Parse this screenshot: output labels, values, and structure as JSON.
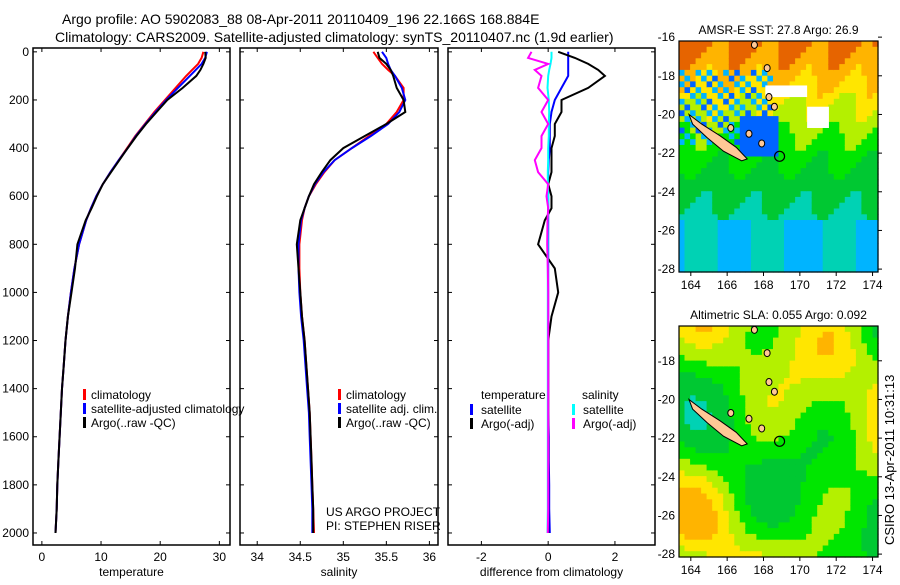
{
  "title": {
    "line1": "Argo profile: AO 5902083_88 08-Apr-2011 20110409_196 22.166S 168.884E",
    "line2": "Climatology: CARS2009. Satellite-adjusted climatology: synTS_20110407.nc (1.9d earlier)"
  },
  "credits": {
    "project": "US ARGO PROJECT",
    "pi": "PI: STEPHEN RISER",
    "stamp": "CSIRO 13-Apr-2011 10:31:13"
  },
  "colors": {
    "climatology": "#ff0000",
    "satellite": "#0000ff",
    "argo": "#000000",
    "sal_satellite": "#00ffff",
    "sal_argo": "#ff00ff"
  },
  "chart_data": [
    {
      "type": "line",
      "xlabel": "temperature",
      "ylabel": "",
      "xlim": [
        -1.5,
        31.8
      ],
      "ylim": [
        2050,
        -16
      ],
      "xticks": [
        "0",
        "10",
        "20",
        "30"
      ],
      "xtick_values": [
        0,
        10,
        20,
        30
      ],
      "yticks": [
        "0",
        "200",
        "400",
        "600",
        "800",
        "1000",
        "1200",
        "1400",
        "1600",
        "1800",
        "2000"
      ],
      "ytick_values": [
        0,
        200,
        400,
        600,
        800,
        1000,
        1200,
        1400,
        1600,
        1800,
        2000
      ],
      "legend": [
        "climatology",
        "satellite-adjusted climatology",
        "Argo(..raw -QC)"
      ],
      "depth": [
        0,
        25,
        50,
        75,
        100,
        150,
        200,
        250,
        300,
        350,
        400,
        450,
        500,
        550,
        600,
        650,
        700,
        800,
        900,
        1000,
        1100,
        1200,
        1300,
        1400,
        1500,
        1600,
        1700,
        1800,
        1900,
        2000
      ],
      "series": [
        {
          "name": "climatology",
          "values": [
            27.3,
            27.0,
            26.4,
            25.4,
            24.4,
            22.6,
            20.8,
            19.0,
            17.4,
            15.8,
            14.4,
            13.0,
            11.6,
            10.3,
            9.2,
            8.3,
            7.5,
            6.3,
            5.5,
            4.9,
            4.4,
            4.0,
            3.7,
            3.4,
            3.2,
            3.0,
            2.8,
            2.6,
            2.5,
            2.3
          ]
        },
        {
          "name": "satellite-adjusted climatology",
          "values": [
            27.9,
            27.6,
            27.0,
            26.0,
            25.0,
            23.0,
            21.0,
            19.2,
            17.5,
            15.9,
            14.5,
            13.0,
            11.6,
            10.3,
            9.2,
            8.3,
            7.5,
            6.3,
            5.5,
            4.9,
            4.4,
            4.0,
            3.7,
            3.4,
            3.2,
            3.0,
            2.8,
            2.6,
            2.5,
            2.3
          ]
        },
        {
          "name": "Argo(..raw -QC)",
          "values": [
            27.6,
            27.7,
            27.3,
            26.8,
            26.1,
            23.8,
            21.2,
            19.4,
            17.6,
            16.0,
            14.5,
            13.1,
            11.7,
            10.3,
            9.3,
            8.4,
            7.4,
            6.0,
            5.6,
            5.0,
            4.4,
            4.0,
            3.7,
            3.4,
            3.2,
            3.0,
            2.8,
            2.6,
            2.5,
            2.3
          ]
        }
      ]
    },
    {
      "type": "line",
      "xlabel": "salinity",
      "xlim": [
        33.8,
        36.1
      ],
      "ylim": [
        2050,
        -16
      ],
      "xticks": [
        "34",
        "34.5",
        "35",
        "35.5",
        "36"
      ],
      "xtick_values": [
        34,
        34.5,
        35,
        35.5,
        36
      ],
      "legend": [
        "climatology",
        "satellite adj. clim.",
        "Argo(..raw -QC)"
      ],
      "depth": [
        0,
        25,
        50,
        75,
        100,
        150,
        200,
        250,
        300,
        350,
        400,
        450,
        500,
        550,
        600,
        650,
        700,
        800,
        900,
        1000,
        1100,
        1200,
        1300,
        1400,
        1500,
        1600,
        1700,
        1800,
        1900,
        2000
      ],
      "series": [
        {
          "name": "climatology",
          "values": [
            35.35,
            35.4,
            35.45,
            35.52,
            35.6,
            35.7,
            35.7,
            35.62,
            35.5,
            35.3,
            35.1,
            34.9,
            34.78,
            34.68,
            34.6,
            34.55,
            34.52,
            34.49,
            34.49,
            34.5,
            34.52,
            34.55,
            34.57,
            34.59,
            34.61,
            34.62,
            34.63,
            34.64,
            34.65,
            34.66
          ]
        },
        {
          "name": "satellite adj. clim.",
          "values": [
            35.45,
            35.5,
            35.52,
            35.55,
            35.6,
            35.68,
            35.72,
            35.65,
            35.52,
            35.32,
            35.1,
            34.9,
            34.77,
            34.67,
            34.6,
            34.55,
            34.51,
            34.48,
            34.48,
            34.49,
            34.51,
            34.54,
            34.56,
            34.58,
            34.6,
            34.61,
            34.62,
            34.63,
            34.64,
            34.64
          ]
        },
        {
          "name": "Argo(..raw -QC)",
          "values": [
            35.4,
            35.42,
            35.5,
            35.55,
            35.58,
            35.62,
            35.7,
            35.72,
            35.5,
            35.25,
            35.0,
            34.85,
            34.75,
            34.66,
            34.6,
            34.55,
            34.5,
            34.46,
            34.48,
            34.5,
            34.52,
            34.55,
            34.57,
            34.59,
            34.61,
            34.62,
            34.63,
            34.64,
            34.65,
            34.65
          ]
        }
      ]
    },
    {
      "type": "line",
      "xlabel": "difference from climatology",
      "xlim": [
        -3.0,
        3.2
      ],
      "ylim": [
        2050,
        -16
      ],
      "xticks": [
        "-2",
        "0",
        "2"
      ],
      "xtick_values": [
        -2,
        0,
        2
      ],
      "legend_headers": [
        "temperature",
        "salinity"
      ],
      "legend": [
        "satellite",
        "Argo(-adj)",
        "satellite",
        "Argo(-adj)"
      ],
      "depth": [
        0,
        25,
        50,
        75,
        100,
        150,
        200,
        250,
        300,
        350,
        400,
        450,
        500,
        550,
        600,
        650,
        700,
        800,
        900,
        1000,
        1100,
        1200,
        1300,
        1400,
        1500,
        1600,
        1700,
        1800,
        1900,
        2000
      ],
      "series": [
        {
          "name": "temperature satellite",
          "values": [
            0.6,
            0.6,
            0.6,
            0.6,
            0.6,
            0.4,
            0.2,
            0.1,
            0.05,
            0.05,
            0.05,
            0.02,
            0,
            0,
            0,
            0,
            0,
            0,
            0,
            0,
            0,
            0,
            0,
            0,
            0,
            0.02,
            0.02,
            0.03,
            0.03,
            0.05
          ]
        },
        {
          "name": "temperature Argo(-adj)",
          "values": [
            0.3,
            0.8,
            1.2,
            1.5,
            1.7,
            1.2,
            0.4,
            0.4,
            0.2,
            0.2,
            0.1,
            0.1,
            0.1,
            0,
            0.1,
            0.1,
            -0.1,
            -0.3,
            0.2,
            0.3,
            0.1,
            0,
            0,
            0,
            0,
            0,
            0,
            0,
            0,
            0
          ]
        },
        {
          "name": "salinity satellite",
          "values": [
            0.1,
            0.1,
            0.07,
            0.03,
            0,
            -0.02,
            0.02,
            0.03,
            0.02,
            0.02,
            0,
            0,
            -0.01,
            -0.01,
            0,
            0,
            -0.01,
            -0.01,
            -0.01,
            -0.01,
            -0.01,
            -0.01,
            -0.01,
            -0.01,
            -0.01,
            -0.01,
            -0.01,
            -0.01,
            -0.01,
            -0.02
          ]
        },
        {
          "name": "salinity Argo(-adj)",
          "values": [
            -0.5,
            -0.6,
            0.0,
            -0.4,
            -0.2,
            -0.3,
            0.0,
            -0.2,
            0.0,
            -0.2,
            -0.2,
            -0.4,
            -0.3,
            0.0,
            -0.05,
            0,
            -0.02,
            -0.03,
            -0.01,
            0,
            0,
            0,
            0,
            0,
            0,
            0,
            0,
            0,
            0,
            -0.01
          ]
        }
      ]
    }
  ],
  "maps": [
    {
      "title": "AMSR-E SST: 27.8 Argo: 26.9",
      "lon_range": [
        163.35,
        174.3
      ],
      "lat_range": [
        -16.2,
        -28.15
      ],
      "xticks": [
        "164",
        "166",
        "168",
        "170",
        "172",
        "174"
      ],
      "yticks": [
        "-16",
        "-18",
        "-20",
        "-22",
        "-24",
        "-26",
        "-28"
      ],
      "float_position": {
        "lat": -22.166,
        "lon": 168.884
      }
    },
    {
      "title": "Altimetric SLA: 0.055 Argo: 0.092",
      "lon_range": [
        163.35,
        174.3
      ],
      "lat_range": [
        -16.2,
        -28.15
      ],
      "xticks": [
        "164",
        "166",
        "168",
        "170",
        "172",
        "174"
      ],
      "yticks": [
        "-18",
        "-20",
        "-22",
        "-24",
        "-26",
        "-28"
      ],
      "float_position": {
        "lat": -22.166,
        "lon": 168.884
      }
    }
  ]
}
